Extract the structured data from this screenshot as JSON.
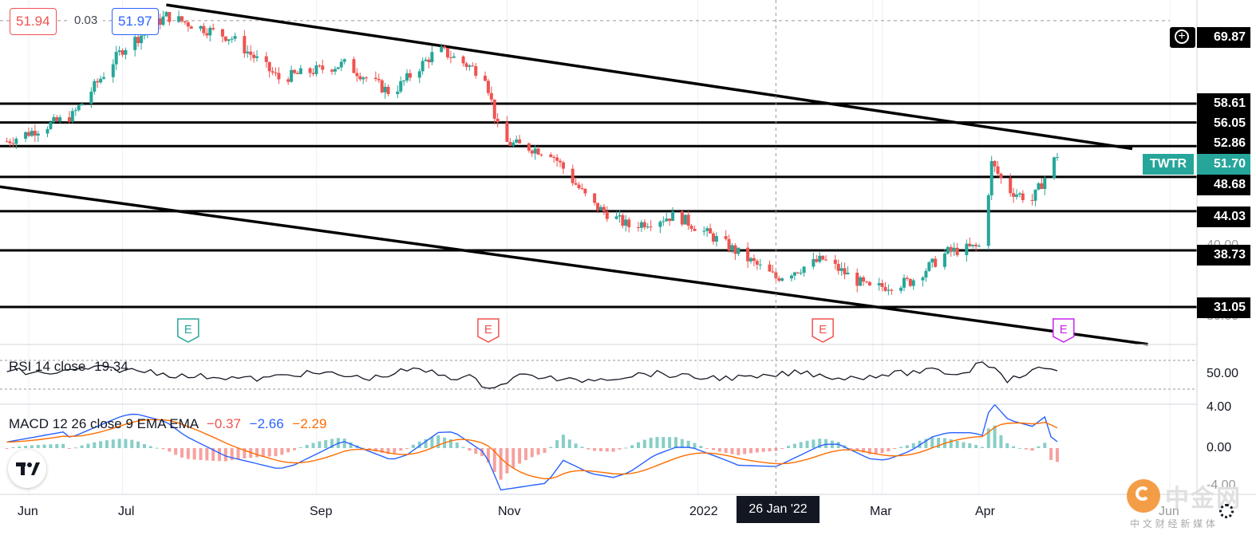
{
  "quote": {
    "bid": "51.94",
    "spread": "0.03",
    "ask": "51.97"
  },
  "price_axis": {
    "crosshair_value": "69.87",
    "levels": [
      "58.61",
      "56.05",
      "52.86",
      "48.68",
      "44.03",
      "38.73",
      "31.05"
    ],
    "partial_labels": [
      "40.00",
      "30.00"
    ],
    "ticker": "TWTR",
    "last_price": "51.70"
  },
  "time_axis": {
    "months": [
      "Jun",
      "Jul",
      "Sep",
      "Nov",
      "2022",
      "Mar",
      "Apr",
      "Jun"
    ],
    "cursor_date": "26 Jan '22"
  },
  "rsi": {
    "label": "RSI 14 close",
    "value": "19.34",
    "axis_label": "50.00"
  },
  "macd": {
    "label": "MACD 12 26 close 9 EMA EMA",
    "histogram": "−0.37",
    "macd": "−2.66",
    "signal": "−2.29",
    "axis_labels": [
      "4.00",
      "0.00",
      "-4.00"
    ]
  },
  "earnings_markers": [
    "E",
    "E",
    "E",
    "E"
  ],
  "watermark": {
    "brand": "中金网",
    "sub": "中 文 财 经 新 媒 体"
  },
  "colors": {
    "up": "#26a69a",
    "down": "#ef5350",
    "macd": "#2962ff",
    "signal": "#ff6d00",
    "ticker": "#26a69a"
  },
  "chart_data": {
    "type": "candlestick",
    "symbol": "TWTR",
    "horizontal_levels": [
      58.61,
      56.05,
      52.86,
      48.68,
      44.03,
      38.73,
      31.05
    ],
    "trendlines": [
      {
        "from": [
          "2021-07-15",
          72.0
        ],
        "to": [
          "2022-05-20",
          52.5
        ]
      },
      {
        "from": [
          "2021-05-15",
          47.8
        ],
        "to": [
          "2022-05-25",
          26.0
        ]
      }
    ],
    "price_path": [
      {
        "date": "2021-05-25",
        "price": 53.5
      },
      {
        "date": "2021-06-15",
        "price": 57.0
      },
      {
        "date": "2021-07-01",
        "price": 66.0
      },
      {
        "date": "2021-07-15",
        "price": 70.5
      },
      {
        "date": "2021-08-05",
        "price": 67.5
      },
      {
        "date": "2021-08-20",
        "price": 62.0
      },
      {
        "date": "2021-09-10",
        "price": 64.0
      },
      {
        "date": "2021-09-25",
        "price": 60.0
      },
      {
        "date": "2021-10-10",
        "price": 66.0
      },
      {
        "date": "2021-10-25",
        "price": 62.5
      },
      {
        "date": "2021-10-30",
        "price": 53.5
      },
      {
        "date": "2021-11-15",
        "price": 52.0
      },
      {
        "date": "2021-11-28",
        "price": 45.0
      },
      {
        "date": "2021-12-10",
        "price": 42.0
      },
      {
        "date": "2021-12-25",
        "price": 43.5
      },
      {
        "date": "2022-01-10",
        "price": 39.5
      },
      {
        "date": "2022-01-26",
        "price": 35.0
      },
      {
        "date": "2022-02-10",
        "price": 37.5
      },
      {
        "date": "2022-02-25",
        "price": 33.5
      },
      {
        "date": "2022-03-10",
        "price": 34.5
      },
      {
        "date": "2022-03-22",
        "price": 38.5
      },
      {
        "date": "2022-04-02",
        "price": 39.3
      },
      {
        "date": "2022-04-05",
        "price": 50.5
      },
      {
        "date": "2022-04-10",
        "price": 47.0
      },
      {
        "date": "2022-04-18",
        "price": 45.5
      },
      {
        "date": "2022-04-26",
        "price": 51.7
      }
    ],
    "earnings_dates": [
      "2021-07-22",
      "2021-10-26",
      "2022-02-10",
      "2022-04-28"
    ],
    "rsi_last": 19.34,
    "macd_last": {
      "histogram": -0.37,
      "macd": -2.66,
      "signal": -2.29
    }
  }
}
